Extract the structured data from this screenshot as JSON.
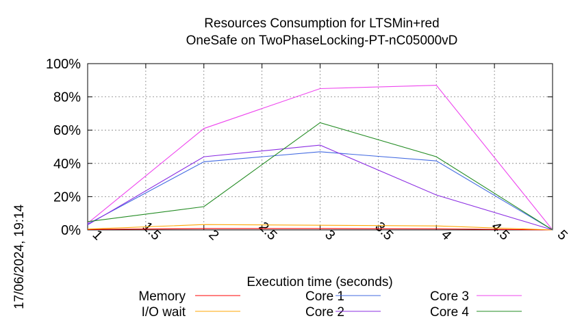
{
  "chart_data": {
    "type": "line",
    "title": "Resources Consumption for LTSMin+red",
    "subtitle": "OneSafe on TwoPhaseLocking-PT-nC05000vD",
    "xlabel": "Execution time (seconds)",
    "ylabel": "",
    "timestamp": "17/06/2024, 19:14",
    "xlim": [
      1,
      5
    ],
    "ylim": [
      0,
      100
    ],
    "x_ticks": [
      "1",
      "1.5",
      "2",
      "2.5",
      "3",
      "3.5",
      "4",
      "4.5",
      "5"
    ],
    "x_tick_values": [
      1,
      1.5,
      2,
      2.5,
      3,
      3.5,
      4,
      4.5,
      5
    ],
    "y_ticks": [
      "0%",
      "20%",
      "40%",
      "60%",
      "80%",
      "100%"
    ],
    "y_tick_values": [
      0,
      20,
      40,
      60,
      80,
      100
    ],
    "grid": true,
    "legend_position": "bottom",
    "x": [
      1,
      2,
      3,
      4,
      5
    ],
    "series": [
      {
        "name": "Memory",
        "color": "#ff0000",
        "values": [
          0.3,
          0.8,
          0.8,
          0.6,
          0
        ]
      },
      {
        "name": "I/O wait",
        "color": "#ffa500",
        "values": [
          0.5,
          3.2,
          2.8,
          2.4,
          0
        ]
      },
      {
        "name": "Core 1",
        "color": "#4169e1",
        "values": [
          3.5,
          41,
          47,
          41.5,
          0
        ]
      },
      {
        "name": "Core 2",
        "color": "#8a2be2",
        "values": [
          3,
          44,
          51,
          21,
          0
        ]
      },
      {
        "name": "Core 3",
        "color": "#ee44ee",
        "values": [
          4,
          61,
          85,
          87,
          0
        ]
      },
      {
        "name": "Core 4",
        "color": "#228b22",
        "values": [
          5,
          14,
          64.5,
          44,
          0
        ]
      }
    ]
  }
}
